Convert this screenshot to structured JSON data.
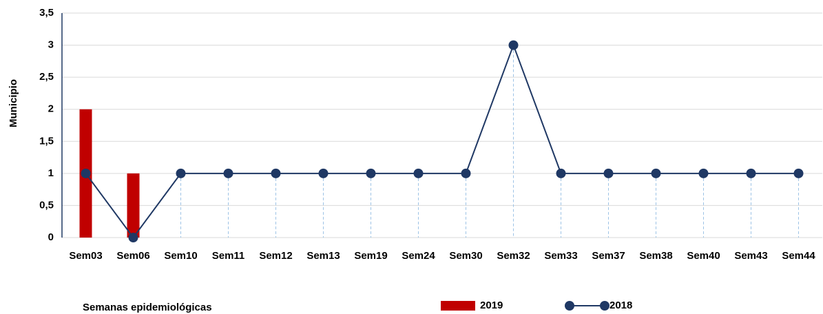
{
  "chart_data": {
    "type": "bar-line",
    "y_label": "Municipio",
    "x_label": "Semanas epidemiológicas",
    "categories": [
      "Sem03",
      "Sem06",
      "Sem10",
      "Sem11",
      "Sem12",
      "Sem13",
      "Sem19",
      "Sem24",
      "Sem30",
      "Sem32",
      "Sem33",
      "Sem37",
      "Sem38",
      "Sem40",
      "Sem43",
      "Sem44"
    ],
    "series": [
      {
        "name": "2019",
        "type": "bar",
        "color": "#c00000",
        "values": [
          2,
          1,
          0,
          0,
          0,
          0,
          0,
          0,
          0,
          0,
          0,
          0,
          0,
          0,
          0,
          0
        ]
      },
      {
        "name": "2018",
        "type": "line",
        "color": "#1f3864",
        "values": [
          1,
          0,
          1,
          1,
          1,
          1,
          1,
          1,
          1,
          3,
          1,
          1,
          1,
          1,
          1,
          1
        ]
      }
    ],
    "ylim": [
      0,
      3.5
    ],
    "yticks": [
      0,
      {
        "value": 0.5,
        "label": "0,5"
      },
      1,
      {
        "value": 1.5,
        "label": "1,5"
      },
      2,
      {
        "value": 2.5,
        "label": "2,5"
      },
      3,
      {
        "value": 3.5,
        "label": "3,5"
      }
    ],
    "grid": true
  }
}
